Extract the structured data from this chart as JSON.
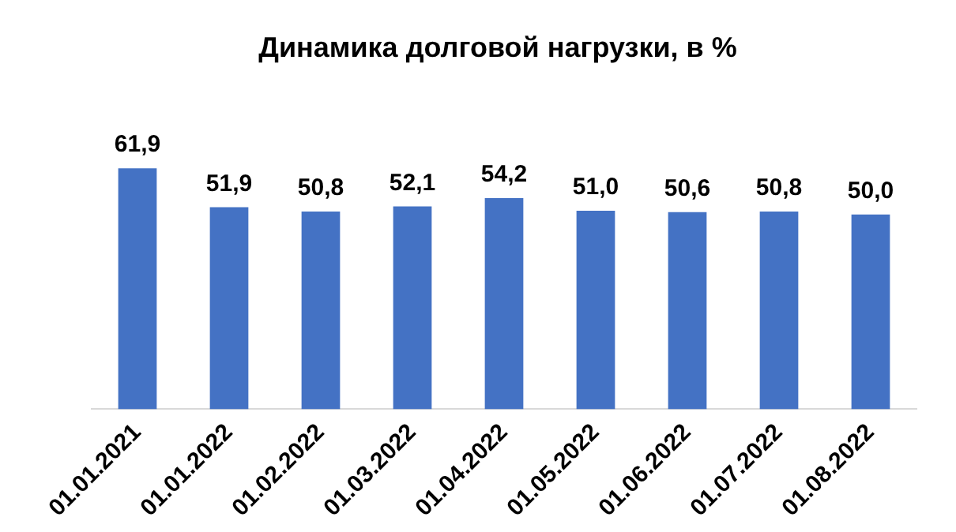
{
  "chart_data": {
    "type": "bar",
    "title": "Динамика долговой нагрузки, в %",
    "categories": [
      "01.01.2021",
      "01.01.2022",
      "01.02.2022",
      "01.03.2022",
      "01.04.2022",
      "01.05.2022",
      "01.06.2022",
      "01.07.2022",
      "01.08.2022"
    ],
    "values": [
      61.9,
      51.9,
      50.8,
      52.1,
      54.2,
      51.0,
      50.6,
      50.8,
      50.0
    ],
    "value_labels": [
      "61,9",
      "51,9",
      "50,8",
      "52,1",
      "54,2",
      "51,0",
      "50,6",
      "50,8",
      "50,0"
    ],
    "color": "#4472c4",
    "tick_labels": "x",
    "grid": false,
    "legend": false
  }
}
